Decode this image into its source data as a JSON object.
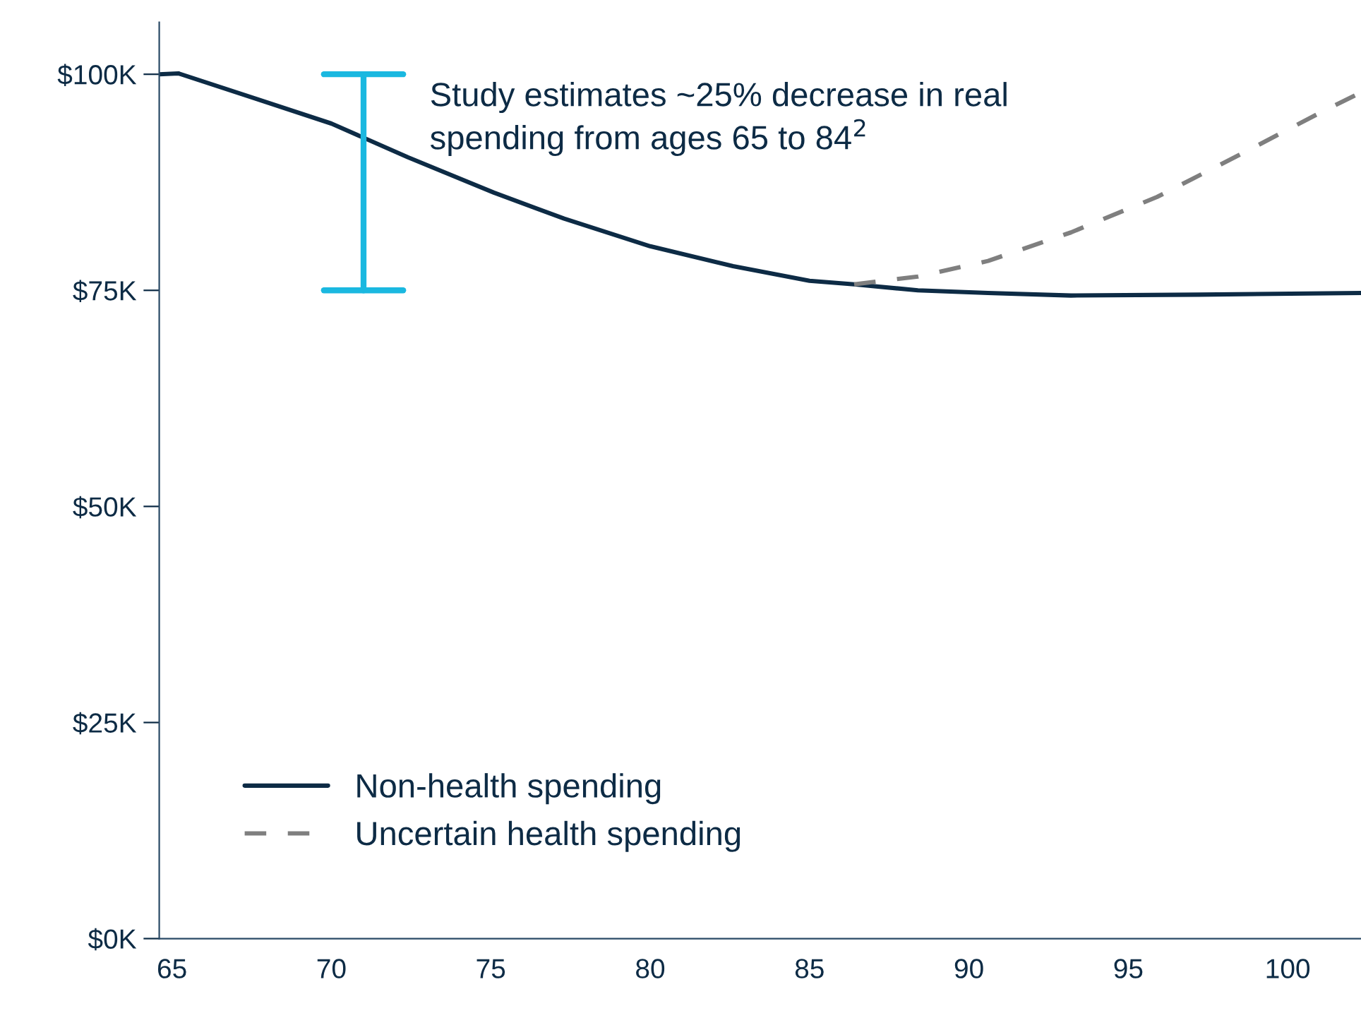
{
  "chart_data": {
    "type": "line",
    "x": [
      64.6,
      65.2,
      67.6,
      70,
      72.4,
      75.1,
      77.3,
      80,
      82.6,
      85,
      86.4,
      88.4,
      90.6,
      93.2,
      97.2,
      102.3
    ],
    "series": [
      {
        "name": "Non-health spending",
        "color": "#0d2b45",
        "line_style": "solid",
        "values": [
          100,
          100.1,
          97.2,
          94.3,
          90.4,
          86.3,
          83.3,
          80.1,
          77.8,
          76.1,
          75.7,
          75.0,
          74.7,
          74.4,
          74.5,
          74.7
        ]
      },
      {
        "name": "Uncertain health spending",
        "color": "#7f7f7f",
        "line_style": "dashed",
        "x": [
          86.4,
          88.4,
          90.6,
          93.2,
          95.9,
          98.5,
          101.2,
          102.3
        ],
        "values": [
          75.7,
          76.6,
          78.4,
          81.7,
          85.8,
          90.7,
          95.9,
          97.9
        ]
      }
    ],
    "xlim": [
      64.6,
      102.3
    ],
    "xticks": [
      65,
      70,
      75,
      80,
      85,
      90,
      95,
      100
    ],
    "ylim": [
      0,
      106
    ],
    "yticks": [
      {
        "value": 0,
        "label": "$0K"
      },
      {
        "value": 25,
        "label": "$25K"
      },
      {
        "value": 50,
        "label": "$50K"
      },
      {
        "value": 75,
        "label": "$75K"
      },
      {
        "value": 100,
        "label": "$100K"
      }
    ],
    "annotations": [
      "Study estimates ~25% decrease in real\nspending from ages 65 to 84$^{2}$"
    ],
    "legend": "bottom left",
    "grid": false
  }
}
